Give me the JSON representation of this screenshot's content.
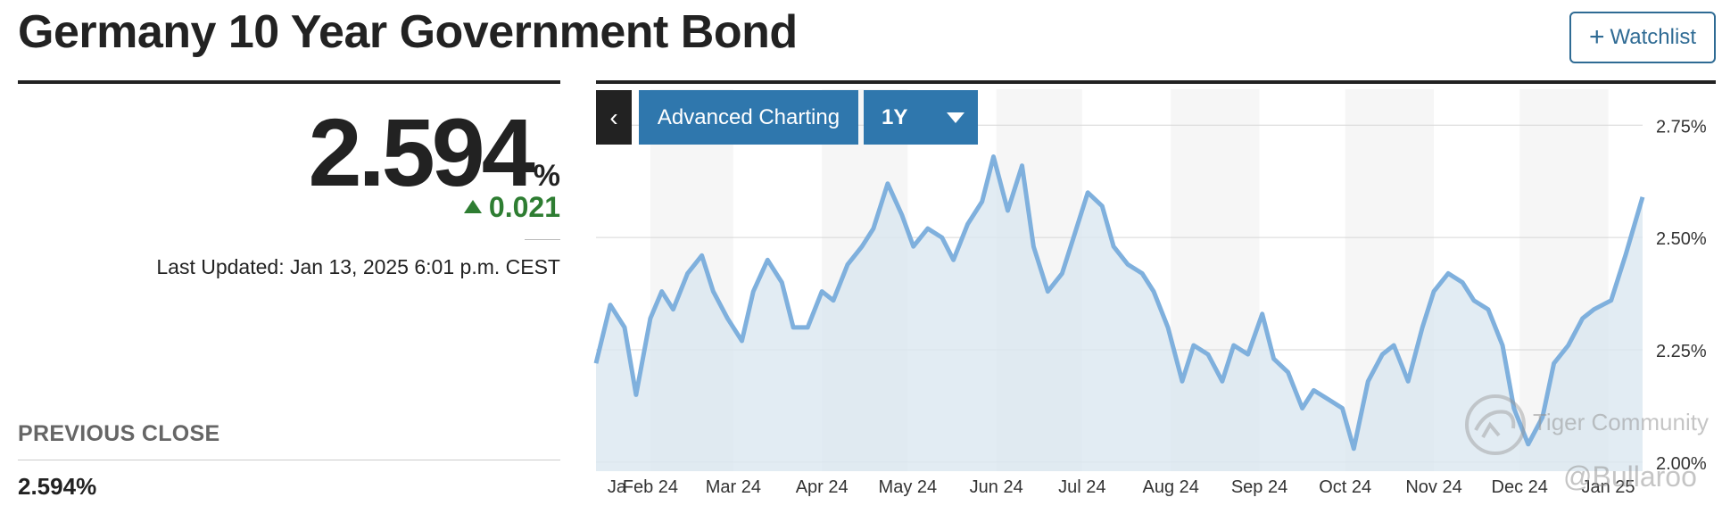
{
  "header": {
    "title": "Germany 10 Year Government Bond",
    "watchlist_label": "Watchlist"
  },
  "quote": {
    "price": "2.594",
    "unit": "%",
    "change": "0.021",
    "last_updated": "Last Updated: Jan 13, 2025 6:01 p.m. CEST"
  },
  "previous_close": {
    "label": "PREVIOUS CLOSE",
    "value": "2.594%"
  },
  "controls": {
    "advanced_label": "Advanced Charting",
    "range_label": "1Y"
  },
  "watermark": {
    "line1": "Tiger Community",
    "line2": "@Bullaroo"
  },
  "colors": {
    "line": "#7fb0dd",
    "fill": "#dbe7f0",
    "accent": "#2f77ad",
    "up": "#2e7d32"
  },
  "chart_data": {
    "type": "area",
    "ylim": [
      1.98,
      2.83
    ],
    "y_ticks": [
      2.0,
      2.25,
      2.5,
      2.75
    ],
    "y_tick_labels": [
      "2.00%",
      "2.25%",
      "2.50%",
      "2.75%"
    ],
    "x_range": [
      "2024-01-13",
      "2025-01-13"
    ],
    "month_labels": [
      {
        "label": "Ja",
        "date": "2024-01-17"
      },
      {
        "label": "Feb 24",
        "date": "2024-02-01"
      },
      {
        "label": "Mar 24",
        "date": "2024-03-01"
      },
      {
        "label": "Apr 24",
        "date": "2024-04-01"
      },
      {
        "label": "May 24",
        "date": "2024-05-01"
      },
      {
        "label": "Jun 24",
        "date": "2024-06-01"
      },
      {
        "label": "Jul 24",
        "date": "2024-07-01"
      },
      {
        "label": "Aug 24",
        "date": "2024-08-01"
      },
      {
        "label": "Sep 24",
        "date": "2024-09-01"
      },
      {
        "label": "Oct 24",
        "date": "2024-10-01"
      },
      {
        "label": "Nov 24",
        "date": "2024-11-01"
      },
      {
        "label": "Dec 24",
        "date": "2024-12-01"
      },
      {
        "label": "Jan 25",
        "date": "2025-01-01"
      }
    ],
    "grid": true,
    "series": [
      {
        "x": [
          "2024-01-13",
          "2024-01-18",
          "2024-01-23",
          "2024-01-27",
          "2024-02-01",
          "2024-02-05",
          "2024-02-09",
          "2024-02-14",
          "2024-02-19",
          "2024-02-23",
          "2024-02-28",
          "2024-03-04",
          "2024-03-08",
          "2024-03-13",
          "2024-03-18",
          "2024-03-22",
          "2024-03-27",
          "2024-04-01",
          "2024-04-05",
          "2024-04-10",
          "2024-04-15",
          "2024-04-19",
          "2024-04-24",
          "2024-04-29",
          "2024-05-03",
          "2024-05-08",
          "2024-05-13",
          "2024-05-17",
          "2024-05-22",
          "2024-05-27",
          "2024-05-31",
          "2024-06-05",
          "2024-06-10",
          "2024-06-14",
          "2024-06-19",
          "2024-06-24",
          "2024-06-28",
          "2024-07-03",
          "2024-07-08",
          "2024-07-12",
          "2024-07-17",
          "2024-07-22",
          "2024-07-26",
          "2024-07-31",
          "2024-08-05",
          "2024-08-09",
          "2024-08-14",
          "2024-08-19",
          "2024-08-23",
          "2024-08-28",
          "2024-09-02",
          "2024-09-06",
          "2024-09-11",
          "2024-09-16",
          "2024-09-20",
          "2024-09-25",
          "2024-09-30",
          "2024-10-04",
          "2024-10-09",
          "2024-10-14",
          "2024-10-18",
          "2024-10-23",
          "2024-10-28",
          "2024-11-01",
          "2024-11-06",
          "2024-11-11",
          "2024-11-15",
          "2024-11-20",
          "2024-11-25",
          "2024-11-29",
          "2024-12-04",
          "2024-12-09",
          "2024-12-13",
          "2024-12-18",
          "2024-12-23",
          "2024-12-27",
          "2025-01-02",
          "2025-01-07",
          "2025-01-13"
        ],
        "values": [
          2.22,
          2.35,
          2.3,
          2.15,
          2.32,
          2.38,
          2.34,
          2.42,
          2.46,
          2.38,
          2.32,
          2.27,
          2.38,
          2.45,
          2.4,
          2.3,
          2.3,
          2.38,
          2.36,
          2.44,
          2.48,
          2.52,
          2.62,
          2.55,
          2.48,
          2.52,
          2.5,
          2.45,
          2.53,
          2.58,
          2.68,
          2.56,
          2.66,
          2.48,
          2.38,
          2.42,
          2.5,
          2.6,
          2.57,
          2.48,
          2.44,
          2.42,
          2.38,
          2.3,
          2.18,
          2.26,
          2.24,
          2.18,
          2.26,
          2.24,
          2.33,
          2.23,
          2.2,
          2.12,
          2.16,
          2.14,
          2.12,
          2.03,
          2.18,
          2.24,
          2.26,
          2.18,
          2.3,
          2.38,
          2.42,
          2.4,
          2.36,
          2.34,
          2.26,
          2.12,
          2.04,
          2.1,
          2.22,
          2.26,
          2.32,
          2.34,
          2.36,
          2.46,
          2.59
        ]
      }
    ]
  }
}
